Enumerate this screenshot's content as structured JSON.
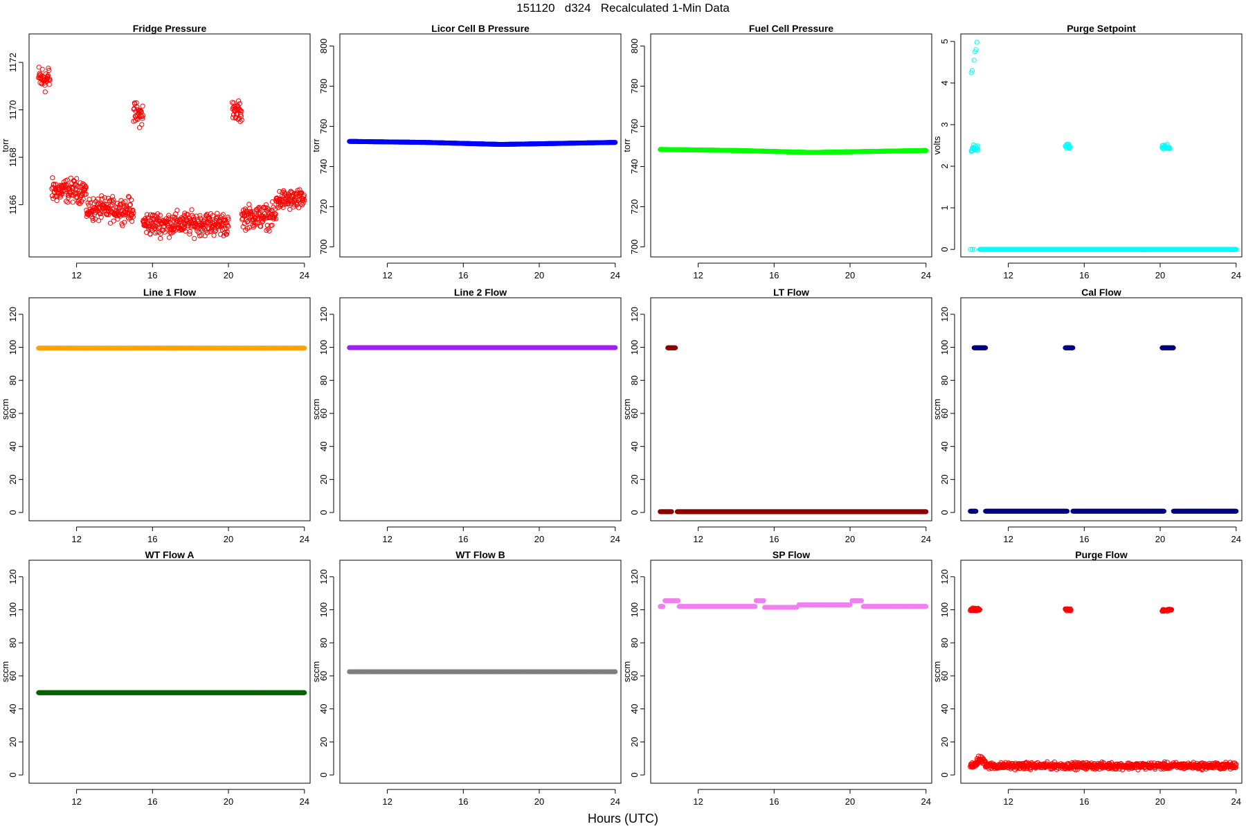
{
  "figure": {
    "title": "151120   d324   Recalculated 1-Min Data",
    "xlabel": "Hours (UTC)"
  },
  "chart_data": [
    {
      "type": "scatter",
      "title": "Fridge Pressure",
      "ylabel": "torr",
      "xlim": [
        9.5,
        24.3
      ],
      "ylim": [
        1163.8,
        1173.2
      ],
      "xticks": [
        12,
        16,
        20,
        24
      ],
      "yticks": [
        1166,
        1168,
        1170,
        1172
      ],
      "color": "#ff0000",
      "marker": "open",
      "series": [
        {
          "kind": "noisy",
          "x_start": 10.0,
          "x_end": 10.6,
          "y_mean": 1171.3,
          "y_jitter": 0.55
        },
        {
          "kind": "noisy",
          "x_start": 10.7,
          "x_end": 12.5,
          "y_mean": 1166.6,
          "y_jitter": 0.45
        },
        {
          "kind": "noisy",
          "x_start": 12.5,
          "x_end": 15.0,
          "y_mean": 1165.8,
          "y_jitter": 0.45
        },
        {
          "kind": "noisy",
          "x_start": 15.0,
          "x_end": 15.5,
          "y_mean": 1169.8,
          "y_jitter": 0.45
        },
        {
          "kind": "noisy",
          "x_start": 15.5,
          "x_end": 20.0,
          "y_mean": 1165.2,
          "y_jitter": 0.45
        },
        {
          "kind": "noisy",
          "x_start": 20.2,
          "x_end": 20.7,
          "y_mean": 1169.9,
          "y_jitter": 0.4
        },
        {
          "kind": "noisy",
          "x_start": 20.7,
          "x_end": 22.5,
          "y_mean": 1165.5,
          "y_jitter": 0.45
        },
        {
          "kind": "noisy",
          "x_start": 22.5,
          "x_end": 24.0,
          "y_mean": 1166.2,
          "y_jitter": 0.4
        }
      ]
    },
    {
      "type": "scatter",
      "title": "Licor Cell B Pressure",
      "ylabel": "torr",
      "xlim": [
        9.5,
        24.3
      ],
      "ylim": [
        695,
        806
      ],
      "xticks": [
        12,
        16,
        20,
        24
      ],
      "yticks": [
        700,
        720,
        740,
        760,
        780,
        800
      ],
      "color": "#0000ff",
      "marker": "filled",
      "series": [
        {
          "kind": "smooth",
          "x": [
            10.0,
            14.0,
            18.0,
            24.0
          ],
          "y": [
            752.5,
            752.0,
            751.0,
            752.0
          ]
        }
      ]
    },
    {
      "type": "scatter",
      "title": "Fuel Cell Pressure",
      "ylabel": "torr",
      "xlim": [
        9.5,
        24.3
      ],
      "ylim": [
        695,
        806
      ],
      "xticks": [
        12,
        16,
        20,
        24
      ],
      "yticks": [
        700,
        720,
        740,
        760,
        780,
        800
      ],
      "color": "#00ff00",
      "marker": "filled",
      "series": [
        {
          "kind": "smooth",
          "x": [
            10.0,
            14.0,
            18.0,
            24.0
          ],
          "y": [
            748.5,
            748.0,
            747.0,
            748.0
          ]
        }
      ]
    },
    {
      "type": "scatter",
      "title": "Purge Setpoint",
      "ylabel": "volts",
      "xlim": [
        9.5,
        24.3
      ],
      "ylim": [
        -0.18,
        5.18
      ],
      "xticks": [
        12,
        16,
        20,
        24
      ],
      "yticks": [
        0,
        1,
        2,
        3,
        4,
        5
      ],
      "color": "#00ffff",
      "marker": "open",
      "series": [
        {
          "kind": "points",
          "x": [
            10.05,
            10.1,
            10.2,
            10.25,
            10.3,
            10.35
          ],
          "y": [
            4.25,
            4.3,
            4.55,
            4.75,
            4.8,
            4.98
          ]
        },
        {
          "kind": "noisy",
          "x_start": 10.05,
          "x_end": 10.4,
          "y_mean": 2.42,
          "y_jitter": 0.08
        },
        {
          "kind": "noisy",
          "x_start": 15.0,
          "x_end": 15.25,
          "y_mean": 2.47,
          "y_jitter": 0.05
        },
        {
          "kind": "noisy",
          "x_start": 20.1,
          "x_end": 20.5,
          "y_mean": 2.45,
          "y_jitter": 0.07
        },
        {
          "kind": "points",
          "x": [
            10.0,
            10.1,
            10.2
          ],
          "y": [
            0,
            0,
            0
          ]
        },
        {
          "kind": "line",
          "x_start": 10.5,
          "x_end": 24.0,
          "y": 0
        }
      ]
    },
    {
      "type": "scatter",
      "title": "Line 1 Flow",
      "ylabel": "sccm",
      "xlim": [
        9.5,
        24.3
      ],
      "ylim": [
        -5,
        130
      ],
      "xticks": [
        12,
        16,
        20,
        24
      ],
      "yticks": [
        0,
        20,
        40,
        60,
        80,
        100,
        120
      ],
      "color": "#ffa500",
      "marker": "filled",
      "series": [
        {
          "kind": "line",
          "x_start": 10.0,
          "x_end": 24.0,
          "y": 99.5
        }
      ]
    },
    {
      "type": "scatter",
      "title": "Line 2 Flow",
      "ylabel": "sccm",
      "xlim": [
        9.5,
        24.3
      ],
      "ylim": [
        -5,
        130
      ],
      "xticks": [
        12,
        16,
        20,
        24
      ],
      "yticks": [
        0,
        20,
        40,
        60,
        80,
        100,
        120
      ],
      "color": "#a020f0",
      "marker": "filled",
      "series": [
        {
          "kind": "line",
          "x_start": 10.0,
          "x_end": 24.0,
          "y": 99.8
        }
      ]
    },
    {
      "type": "scatter",
      "title": "LT Flow",
      "ylabel": "sccm",
      "xlim": [
        9.5,
        24.3
      ],
      "ylim": [
        -5,
        130
      ],
      "xticks": [
        12,
        16,
        20,
        24
      ],
      "yticks": [
        0,
        20,
        40,
        60,
        80,
        100,
        120
      ],
      "color": "#8b0000",
      "marker": "filled",
      "series": [
        {
          "kind": "line",
          "x_start": 10.4,
          "x_end": 10.8,
          "y": 99.7
        },
        {
          "kind": "line",
          "x_start": 10.0,
          "x_end": 10.6,
          "y": 0.5
        },
        {
          "kind": "line",
          "x_start": 10.9,
          "x_end": 24.0,
          "y": 0.5
        }
      ]
    },
    {
      "type": "scatter",
      "title": "Cal Flow",
      "ylabel": "sccm",
      "xlim": [
        9.5,
        24.3
      ],
      "ylim": [
        -5,
        130
      ],
      "xticks": [
        12,
        16,
        20,
        24
      ],
      "yticks": [
        0,
        20,
        40,
        60,
        80,
        100,
        120
      ],
      "color": "#000080",
      "marker": "filled",
      "series": [
        {
          "kind": "line",
          "x_start": 10.2,
          "x_end": 10.8,
          "y": 99.7
        },
        {
          "kind": "line",
          "x_start": 15.0,
          "x_end": 15.4,
          "y": 99.7
        },
        {
          "kind": "line",
          "x_start": 20.1,
          "x_end": 20.7,
          "y": 99.7
        },
        {
          "kind": "line",
          "x_start": 10.0,
          "x_end": 10.3,
          "y": 0.8
        },
        {
          "kind": "line",
          "x_start": 10.8,
          "x_end": 15.1,
          "y": 0.8
        },
        {
          "kind": "line",
          "x_start": 15.4,
          "x_end": 20.2,
          "y": 0.8
        },
        {
          "kind": "line",
          "x_start": 20.7,
          "x_end": 24.0,
          "y": 0.8
        }
      ]
    },
    {
      "type": "scatter",
      "title": "WT Flow A",
      "ylabel": "sccm",
      "xlim": [
        9.5,
        24.3
      ],
      "ylim": [
        -5,
        130
      ],
      "xticks": [
        12,
        16,
        20,
        24
      ],
      "yticks": [
        0,
        20,
        40,
        60,
        80,
        100,
        120
      ],
      "color": "#006400",
      "marker": "filled",
      "series": [
        {
          "kind": "line",
          "x_start": 10.0,
          "x_end": 24.0,
          "y": 49.8
        }
      ]
    },
    {
      "type": "scatter",
      "title": "WT Flow B",
      "ylabel": "sccm",
      "xlim": [
        9.5,
        24.3
      ],
      "ylim": [
        -5,
        130
      ],
      "xticks": [
        12,
        16,
        20,
        24
      ],
      "yticks": [
        0,
        20,
        40,
        60,
        80,
        100,
        120
      ],
      "color": "#7f7f7f",
      "marker": "filled",
      "series": [
        {
          "kind": "line",
          "x_start": 10.0,
          "x_end": 24.0,
          "y": 62.5
        }
      ]
    },
    {
      "type": "scatter",
      "title": "SP Flow",
      "ylabel": "sccm",
      "xlim": [
        9.5,
        24.3
      ],
      "ylim": [
        -5,
        130
      ],
      "xticks": [
        12,
        16,
        20,
        24
      ],
      "yticks": [
        0,
        20,
        40,
        60,
        80,
        100,
        120
      ],
      "color": "#ee82ee",
      "marker": "filled",
      "series": [
        {
          "kind": "line",
          "x_start": 10.0,
          "x_end": 10.15,
          "y": 102.0
        },
        {
          "kind": "line",
          "x_start": 10.25,
          "x_end": 10.95,
          "y": 105.5
        },
        {
          "kind": "line",
          "x_start": 11.0,
          "x_end": 15.0,
          "y": 102.0
        },
        {
          "kind": "line",
          "x_start": 15.05,
          "x_end": 15.45,
          "y": 105.5
        },
        {
          "kind": "line",
          "x_start": 15.5,
          "x_end": 17.2,
          "y": 101.5
        },
        {
          "kind": "line",
          "x_start": 17.3,
          "x_end": 20.0,
          "y": 103.0
        },
        {
          "kind": "line",
          "x_start": 20.1,
          "x_end": 20.6,
          "y": 105.5
        },
        {
          "kind": "line",
          "x_start": 20.7,
          "x_end": 24.0,
          "y": 102.0
        }
      ]
    },
    {
      "type": "scatter",
      "title": "Purge Flow",
      "ylabel": "sccm",
      "xlim": [
        9.5,
        24.3
      ],
      "ylim": [
        -5,
        130
      ],
      "xticks": [
        12,
        16,
        20,
        24
      ],
      "yticks": [
        0,
        20,
        40,
        60,
        80,
        100,
        120
      ],
      "color": "#ff0000",
      "marker": "open",
      "series": [
        {
          "kind": "noisy",
          "x_start": 10.0,
          "x_end": 10.5,
          "y_mean": 100.0,
          "y_jitter": 0.8
        },
        {
          "kind": "noisy",
          "x_start": 15.0,
          "x_end": 15.3,
          "y_mean": 100.0,
          "y_jitter": 0.8
        },
        {
          "kind": "noisy",
          "x_start": 20.1,
          "x_end": 20.6,
          "y_mean": 99.8,
          "y_jitter": 0.8
        },
        {
          "kind": "noisy",
          "x_start": 10.0,
          "x_end": 10.35,
          "y_mean": 6.0,
          "y_jitter": 1.5
        },
        {
          "kind": "noisy",
          "x_start": 10.35,
          "x_end": 10.8,
          "y_mean": 9.0,
          "y_jitter": 2.2
        },
        {
          "kind": "noisy",
          "x_start": 10.8,
          "x_end": 24.0,
          "y_mean": 5.5,
          "y_jitter": 1.8
        }
      ]
    }
  ]
}
